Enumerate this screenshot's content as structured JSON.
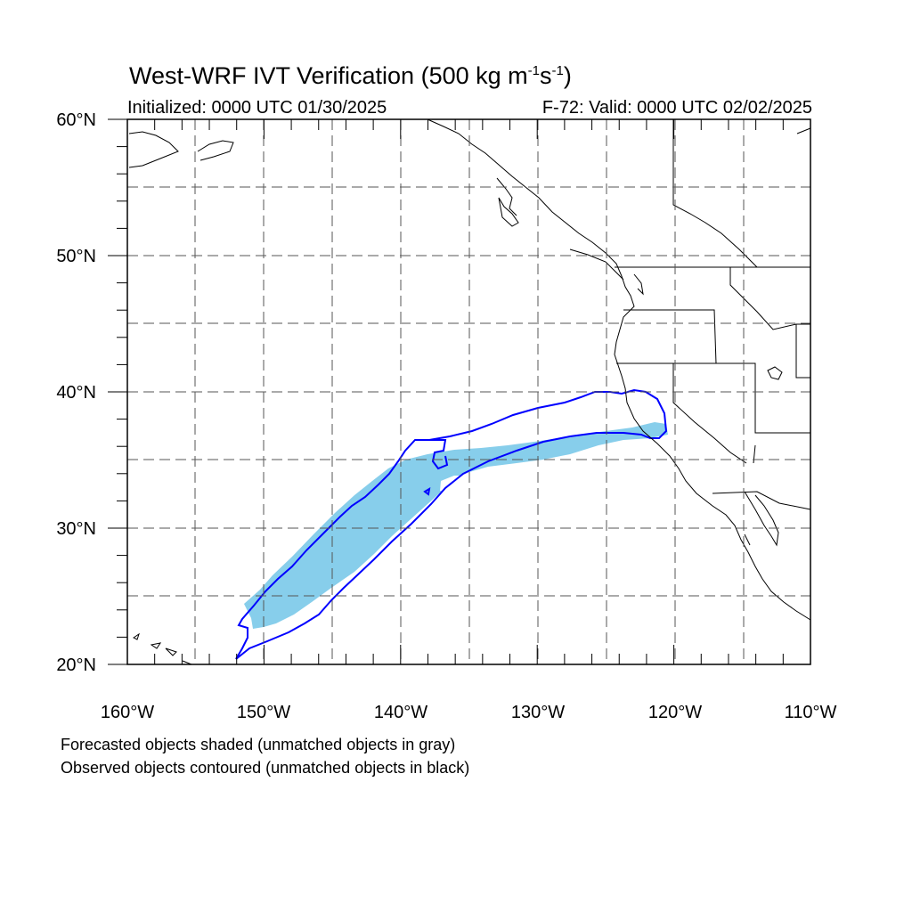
{
  "title": {
    "main": "West-WRF IVT Verification (500 kg m",
    "sup1": "-1",
    "mid": "s",
    "sup2": "-1",
    "end": ")"
  },
  "initialized": "Initialized: 0000 UTC 01/30/2025",
  "valid": "F-72: Valid: 0000 UTC 02/02/2025",
  "axes": {
    "lon_labels": [
      "160°W",
      "150°W",
      "140°W",
      "130°W",
      "120°W",
      "110°W"
    ],
    "lat_labels": [
      "60°N",
      "50°N",
      "40°N",
      "30°N",
      "20°N"
    ],
    "lon_range": [
      -160,
      -110
    ],
    "lat_range": [
      20,
      60
    ],
    "grid": true
  },
  "colors": {
    "forecast_fill": "#87ceeb",
    "observed_contour": "#0000ff",
    "coastline": "#000000"
  },
  "notes": [
    "Forecasted objects shaded (unmatched objects in gray)",
    "Observed objects contoured (unmatched objects in black)"
  ]
}
